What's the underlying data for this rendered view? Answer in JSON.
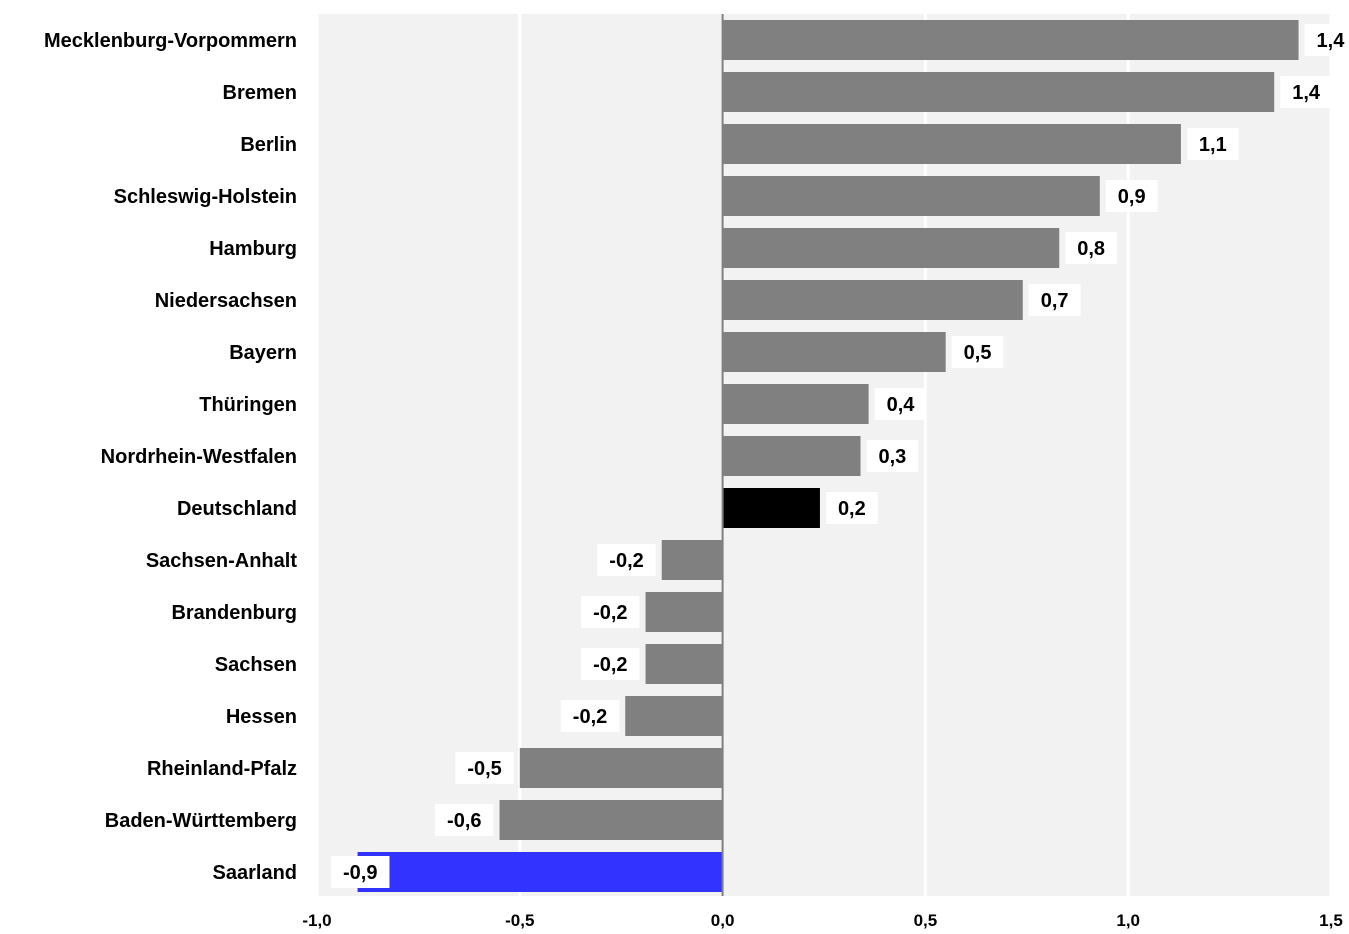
{
  "chart_data": {
    "type": "bar",
    "orientation": "horizontal",
    "categories": [
      "Mecklenburg-Vorpommern",
      "Bremen",
      "Berlin",
      "Schleswig-Holstein",
      "Hamburg",
      "Niedersachsen",
      "Bayern",
      "Thüringen",
      "Nordrhein-Westfalen",
      "Deutschland",
      "Sachsen-Anhalt",
      "Brandenburg",
      "Sachsen",
      "Hessen",
      "Rheinland-Pfalz",
      "Baden-Württemberg",
      "Saarland"
    ],
    "values": [
      1.42,
      1.36,
      1.13,
      0.93,
      0.83,
      0.74,
      0.55,
      0.36,
      0.34,
      0.24,
      -0.15,
      -0.19,
      -0.19,
      -0.24,
      -0.5,
      -0.55,
      -0.9
    ],
    "value_labels": [
      "1,4",
      "1,4",
      "1,1",
      "0,9",
      "0,8",
      "0,7",
      "0,5",
      "0,4",
      "0,3",
      "0,2",
      "-0,2",
      "-0,2",
      "-0,2",
      "-0,2",
      "-0,5",
      "-0,6",
      "-0,9"
    ],
    "bar_colors": [
      "#808080",
      "#808080",
      "#808080",
      "#808080",
      "#808080",
      "#808080",
      "#808080",
      "#808080",
      "#808080",
      "#000000",
      "#808080",
      "#808080",
      "#808080",
      "#808080",
      "#808080",
      "#808080",
      "#3333ff"
    ],
    "xlim": [
      -1.0,
      1.5
    ],
    "x_ticks": [
      -1.0,
      -0.5,
      0.0,
      0.5,
      1.0,
      1.5
    ],
    "x_tick_labels": [
      "-1,0",
      "-0,5",
      "0,0",
      "0,5",
      "1,0",
      "1,5"
    ],
    "title": "",
    "xlabel": "",
    "ylabel": "",
    "grid": true,
    "legend": "none",
    "colors": {
      "default_bar": "#808080",
      "highlight_germany": "#000000",
      "highlight_saarland": "#3333ff",
      "plot_background": "#f2f2f2",
      "gridline": "#ffffff",
      "zero_line": "#808080"
    }
  }
}
